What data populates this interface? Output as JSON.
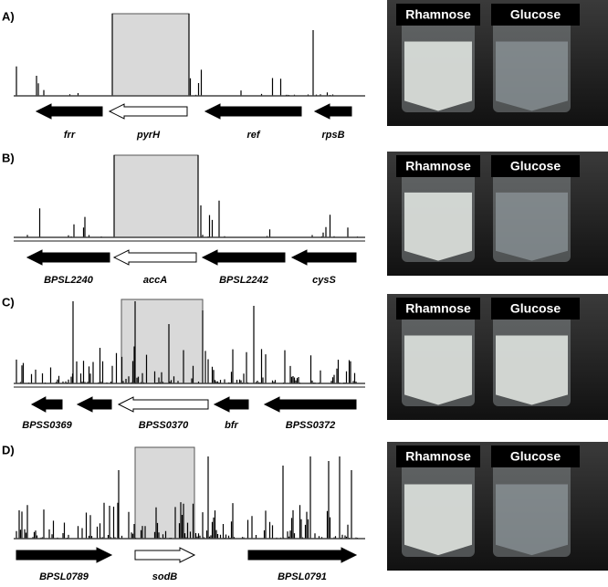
{
  "panels": [
    {
      "label": "A)",
      "genes": [
        "frr",
        "pyrH",
        "ref",
        "rpsB"
      ],
      "conditions": [
        "Rhamnose",
        "Glucose"
      ]
    },
    {
      "label": "B)",
      "genes": [
        "BPSL2240",
        "accA",
        "BPSL2242",
        "cysS"
      ],
      "conditions": [
        "Rhamnose",
        "Glucose"
      ]
    },
    {
      "label": "C)",
      "genes": [
        "BPSS0369",
        "BPSS0370",
        "bfr",
        "BPSS0372"
      ],
      "conditions": [
        "Rhamnose",
        "Glucose"
      ]
    },
    {
      "label": "D)",
      "genes": [
        "BPSL0789",
        "sodB",
        "BPSL0791"
      ],
      "conditions": [
        "Rhamnose",
        "Glucose"
      ]
    }
  ]
}
